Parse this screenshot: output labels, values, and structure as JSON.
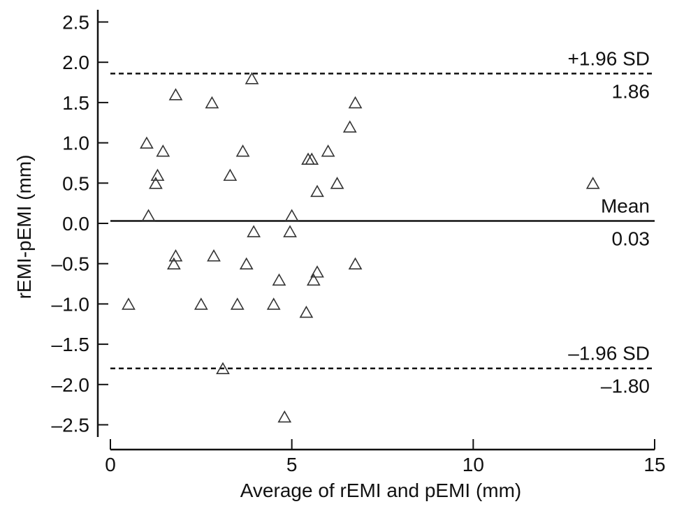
{
  "chart_data": {
    "type": "scatter",
    "xlabel": "Average of rEMI and pEMI (mm)",
    "ylabel": "rEMI-pEMI (mm)",
    "xlim": [
      0,
      15
    ],
    "ylim": [
      -2.6,
      2.6
    ],
    "x_ticks": [
      0,
      5,
      10,
      15
    ],
    "x_tick_labels": [
      "0",
      "5",
      "10",
      "15"
    ],
    "y_ticks": [
      2.5,
      2.0,
      1.5,
      1.0,
      0.5,
      0.0,
      -0.5,
      -1.0,
      -1.5,
      -2.0,
      -2.5
    ],
    "y_tick_labels": [
      "2.5",
      "2.0",
      "1.5",
      "1.0",
      "0.5",
      "0.0",
      "–0.5",
      "–1.0",
      "–1.5",
      "–2.0",
      "–2.5"
    ],
    "grid": false,
    "marker": "open-triangle",
    "reference_lines": [
      {
        "name": "+1.96 SD",
        "value": 1.86,
        "value_label": "1.86",
        "style": "dashed"
      },
      {
        "name": "Mean",
        "value": 0.03,
        "value_label": "0.03",
        "style": "solid"
      },
      {
        "name": "–1.96 SD",
        "value": -1.8,
        "value_label": "–1.80",
        "style": "dashed"
      }
    ],
    "points": [
      {
        "x": 0.5,
        "y": -1.0
      },
      {
        "x": 1.0,
        "y": 1.0
      },
      {
        "x": 1.05,
        "y": 0.1
      },
      {
        "x": 1.25,
        "y": 0.5
      },
      {
        "x": 1.3,
        "y": 0.6
      },
      {
        "x": 1.45,
        "y": 0.9
      },
      {
        "x": 1.75,
        "y": -0.5
      },
      {
        "x": 1.8,
        "y": -0.4
      },
      {
        "x": 1.8,
        "y": 1.6
      },
      {
        "x": 2.5,
        "y": -1.0
      },
      {
        "x": 2.8,
        "y": 1.5
      },
      {
        "x": 2.85,
        "y": -0.4
      },
      {
        "x": 3.1,
        "y": -1.8
      },
      {
        "x": 3.3,
        "y": 0.6
      },
      {
        "x": 3.5,
        "y": -1.0
      },
      {
        "x": 3.65,
        "y": 0.9
      },
      {
        "x": 3.75,
        "y": -0.5
      },
      {
        "x": 3.9,
        "y": 1.8
      },
      {
        "x": 3.95,
        "y": -0.1
      },
      {
        "x": 4.5,
        "y": -1.0
      },
      {
        "x": 4.65,
        "y": -0.7
      },
      {
        "x": 4.8,
        "y": -2.4
      },
      {
        "x": 4.95,
        "y": -0.1
      },
      {
        "x": 5.0,
        "y": 0.1
      },
      {
        "x": 5.4,
        "y": -1.1
      },
      {
        "x": 5.45,
        "y": 0.8
      },
      {
        "x": 5.55,
        "y": 0.8
      },
      {
        "x": 5.6,
        "y": -0.7
      },
      {
        "x": 5.7,
        "y": -0.6
      },
      {
        "x": 5.7,
        "y": 0.4
      },
      {
        "x": 6.0,
        "y": 0.9
      },
      {
        "x": 6.25,
        "y": 0.5
      },
      {
        "x": 6.6,
        "y": 1.2
      },
      {
        "x": 6.75,
        "y": 1.5
      },
      {
        "x": 6.75,
        "y": -0.5
      },
      {
        "x": 13.3,
        "y": 0.5
      }
    ]
  }
}
